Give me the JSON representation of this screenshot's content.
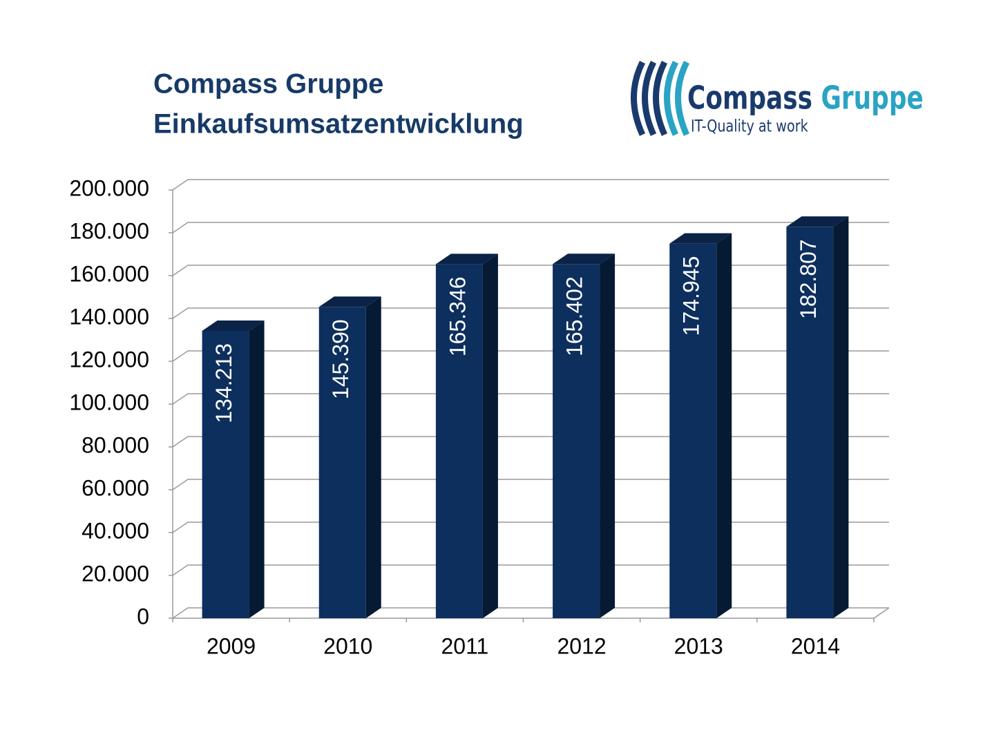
{
  "chart_data": {
    "type": "bar3d",
    "title": "Compass Gruppe",
    "subtitle": "Einkaufsumsatzentwicklung",
    "categories": [
      "2009",
      "2010",
      "2011",
      "2012",
      "2013",
      "2014"
    ],
    "values": [
      134213,
      145390,
      165346,
      165402,
      174945,
      182807
    ],
    "value_labels": [
      "134.213",
      "145.390",
      "165.346",
      "165.402",
      "174.945",
      "182.807"
    ],
    "color": "#0d2f5e",
    "ylim": [
      0,
      200000
    ],
    "yticks": [
      0,
      {
        "value": 20000,
        "label": "20.000"
      },
      {
        "value": 40000,
        "label": "40.000"
      },
      {
        "value": 60000,
        "label": "60.000"
      },
      {
        "value": 80000,
        "label": "80.000"
      },
      {
        "value": 100000,
        "label": "100.000"
      },
      {
        "value": 120000,
        "label": "120.000"
      },
      {
        "value": 140000,
        "label": "140.000"
      },
      {
        "value": 160000,
        "label": "160.000"
      },
      {
        "value": 180000,
        "label": "180.000"
      },
      {
        "value": 200000,
        "label": "200.000"
      }
    ],
    "grid": true
  },
  "logo": {
    "word1": "Compass",
    "word2": "Gruppe",
    "tagline": "IT-Quality at work"
  }
}
